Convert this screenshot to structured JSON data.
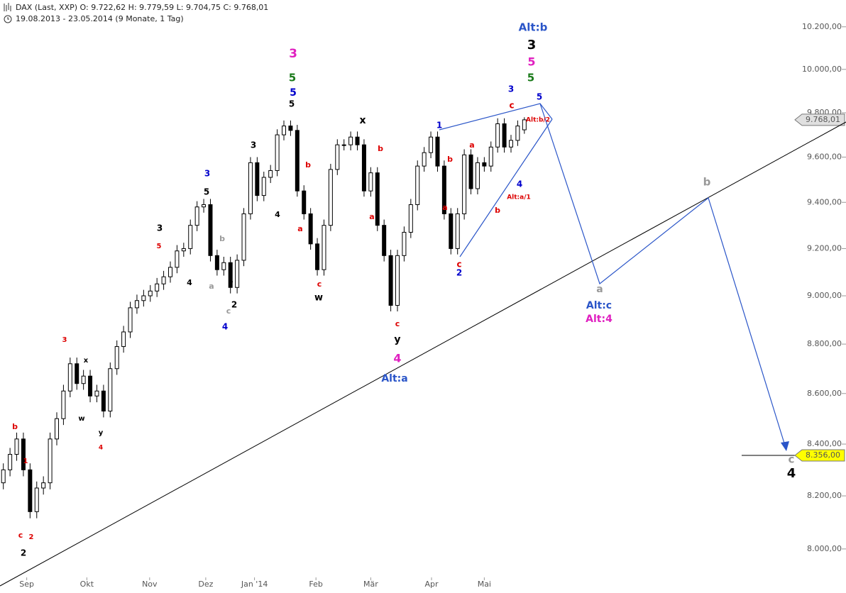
{
  "chart_data": {
    "type": "candlestick",
    "title": "DAX (Last, XXP)   O: 9.722,62   H: 9.779,59   L: 9.704,75   C: 9.768,01",
    "subtitle": "19.08.2013 - 23.05.2014 (9 Monate, 1 Tag)",
    "log_scale": true,
    "xlim": [
      -0.5,
      118.5
    ],
    "ylim": [
      7900,
      10328
    ],
    "xticks": [
      {
        "value": 3.5,
        "label": "Sep"
      },
      {
        "value": 12.5,
        "label": "Okt"
      },
      {
        "value": 21.9,
        "label": "Nov"
      },
      {
        "value": 30.3,
        "label": "Dez"
      },
      {
        "value": 37.6,
        "label": "Jan '14"
      },
      {
        "value": 46.8,
        "label": "Feb"
      },
      {
        "value": 55,
        "label": "Mär"
      },
      {
        "value": 64.1,
        "label": "Apr"
      },
      {
        "value": 72,
        "label": "Mai"
      }
    ],
    "yticks": [
      {
        "value": 8000,
        "label": "8.000,00"
      },
      {
        "value": 8200,
        "label": "8.200,00"
      },
      {
        "value": 8400,
        "label": "8.400,00"
      },
      {
        "value": 8600,
        "label": "8.600,00"
      },
      {
        "value": 8800,
        "label": "8.800,00"
      },
      {
        "value": 9000,
        "label": "9.000,00"
      },
      {
        "value": 9200,
        "label": "9.200,00"
      },
      {
        "value": 9400,
        "label": "9.400,00"
      },
      {
        "value": 9600,
        "label": "9.600,00"
      },
      {
        "value": 9800,
        "label": "9.800,00"
      },
      {
        "value": 10000,
        "label": "10.000,00"
      },
      {
        "value": 10200,
        "label": "10.200,00"
      }
    ],
    "open": [
      8250,
      8300,
      8360,
      8420,
      8300,
      8140,
      8230,
      8250,
      8420,
      8500,
      8610,
      8720,
      8640,
      8670,
      8590,
      8610,
      8530,
      8700,
      8790,
      8850,
      8950,
      8980,
      9000,
      9020,
      9050,
      9080,
      9120,
      9190,
      9200,
      9300,
      9380,
      9390,
      9170,
      9110,
      9140,
      9035,
      9150,
      9350,
      9575,
      9430,
      9510,
      9540,
      9700,
      9740,
      9720,
      9450,
      9350,
      9220,
      9110,
      9300,
      9545,
      9655,
      9655,
      9690,
      9655,
      9450,
      9530,
      9300,
      9170,
      8960,
      9170,
      9270,
      9390,
      9560,
      9620,
      9690,
      9560,
      9350,
      9200,
      9350,
      9610,
      9460,
      9575,
      9560,
      9645,
      9750,
      9645,
      9675,
      9722.62
    ],
    "high": [
      8325,
      8385,
      8445,
      8445,
      8325,
      8255,
      8275,
      8445,
      8525,
      8635,
      8745,
      8745,
      8695,
      8695,
      8635,
      8635,
      8725,
      8815,
      8875,
      8975,
      9005,
      9025,
      9045,
      9075,
      9105,
      9145,
      9215,
      9225,
      9325,
      9405,
      9415,
      9415,
      9195,
      9165,
      9165,
      9175,
      9375,
      9600,
      9600,
      9535,
      9565,
      9725,
      9765,
      9765,
      9745,
      9475,
      9375,
      9245,
      9325,
      9570,
      9680,
      9680,
      9715,
      9715,
      9680,
      9555,
      9555,
      9325,
      9195,
      9195,
      9295,
      9415,
      9585,
      9645,
      9715,
      9715,
      9585,
      9375,
      9375,
      9635,
      9635,
      9600,
      9600,
      9670,
      9775,
      9775,
      9700,
      9765,
      9779.59
    ],
    "low": [
      8225,
      8275,
      8335,
      8275,
      8115,
      8115,
      8205,
      8225,
      8395,
      8475,
      8585,
      8615,
      8615,
      8565,
      8565,
      8505,
      8505,
      8675,
      8765,
      8825,
      8925,
      8955,
      8975,
      8995,
      9025,
      9055,
      9095,
      9165,
      9175,
      9275,
      9355,
      9145,
      9085,
      9085,
      9010,
      9010,
      9125,
      9325,
      9405,
      9405,
      9485,
      9515,
      9675,
      9695,
      9425,
      9325,
      9195,
      9085,
      9085,
      9275,
      9520,
      9630,
      9630,
      9630,
      9425,
      9425,
      9275,
      9145,
      8935,
      8935,
      9145,
      9245,
      9365,
      9535,
      9595,
      9535,
      9325,
      9175,
      9175,
      9325,
      9435,
      9435,
      9535,
      9535,
      9620,
      9620,
      9620,
      9650,
      9704.75
    ],
    "close": [
      8300,
      8360,
      8420,
      8300,
      8140,
      8230,
      8250,
      8420,
      8500,
      8610,
      8720,
      8640,
      8670,
      8590,
      8610,
      8530,
      8700,
      8790,
      8850,
      8950,
      8980,
      9000,
      9020,
      9050,
      9080,
      9120,
      9190,
      9200,
      9300,
      9380,
      9390,
      9170,
      9110,
      9140,
      9035,
      9150,
      9350,
      9575,
      9430,
      9510,
      9540,
      9700,
      9740,
      9720,
      9450,
      9350,
      9220,
      9110,
      9300,
      9545,
      9655,
      9655,
      9690,
      9655,
      9450,
      9530,
      9300,
      9170,
      8960,
      9170,
      9270,
      9390,
      9560,
      9620,
      9690,
      9560,
      9350,
      9200,
      9350,
      9610,
      9460,
      9575,
      9560,
      9645,
      9750,
      9645,
      9675,
      9740,
      9768.01
    ],
    "last_price_label": "9.768,01",
    "target": 8356,
    "target_label": "8.356,00",
    "annotations": [
      {
        "text": "Alt:b",
        "color": "#2a55c8"
      },
      {
        "text": "3",
        "color": "#000000"
      },
      {
        "text": "5",
        "color": "#e020c0"
      },
      {
        "text": "5",
        "color": "#1a7a1a"
      },
      {
        "text": "3",
        "color": "#e020c0"
      },
      {
        "text": "5",
        "color": "#1a7a1a"
      },
      {
        "text": "5",
        "color": "#0000cc"
      },
      {
        "text": "5",
        "color": "#000000"
      },
      {
        "text": "3",
        "color": "#0000cc"
      },
      {
        "text": "5",
        "color": "#0000cc"
      },
      {
        "text": "c",
        "color": "#dd0000"
      },
      {
        "text": "Alt:b/2",
        "color": "#dd0000"
      },
      {
        "text": "1",
        "color": "#0000cc"
      },
      {
        "text": "x",
        "color": "#000000"
      },
      {
        "text": "3",
        "color": "#000000"
      },
      {
        "text": "b",
        "color": "#dd0000"
      },
      {
        "text": "a",
        "color": "#dd0000"
      },
      {
        "text": "b",
        "color": "#dd0000"
      },
      {
        "text": "b",
        "color": "#dd0000"
      },
      {
        "text": "3",
        "color": "#0000cc"
      },
      {
        "text": "5",
        "color": "#000000"
      },
      {
        "text": "4",
        "color": "#0000cc"
      },
      {
        "text": "Alt:a/1",
        "color": "#dd0000"
      },
      {
        "text": "a",
        "color": "#dd0000"
      },
      {
        "text": "b",
        "color": "#dd0000"
      },
      {
        "text": "4",
        "color": "#000000"
      },
      {
        "text": "a",
        "color": "#dd0000"
      },
      {
        "text": "a",
        "color": "#dd0000"
      },
      {
        "text": "3",
        "color": "#000000"
      },
      {
        "text": "5",
        "color": "#dd0000"
      },
      {
        "text": "b",
        "color": "#999999"
      },
      {
        "text": "1",
        "color": "#000000"
      },
      {
        "text": "4",
        "color": "#000000"
      },
      {
        "text": "a",
        "color": "#999999"
      },
      {
        "text": "c",
        "color": "#dd0000"
      },
      {
        "text": "2",
        "color": "#000000"
      },
      {
        "text": "c",
        "color": "#999999"
      },
      {
        "text": "w",
        "color": "#000000"
      },
      {
        "text": "c",
        "color": "#dd0000"
      },
      {
        "text": "2",
        "color": "#0000cc"
      },
      {
        "text": "4",
        "color": "#0000cc"
      },
      {
        "text": "c",
        "color": "#dd0000"
      },
      {
        "text": "y",
        "color": "#000000"
      },
      {
        "text": "4",
        "color": "#e020c0"
      },
      {
        "text": "Alt:a",
        "color": "#2a55c8"
      },
      {
        "text": "3",
        "color": "#dd0000"
      },
      {
        "text": "x",
        "color": "#000000"
      },
      {
        "text": "w",
        "color": "#000000"
      },
      {
        "text": "y",
        "color": "#000000"
      },
      {
        "text": "4",
        "color": "#dd0000"
      },
      {
        "text": "b",
        "color": "#dd0000"
      },
      {
        "text": "1",
        "color": "#dd0000"
      },
      {
        "text": "c",
        "color": "#dd0000"
      },
      {
        "text": "2",
        "color": "#dd0000"
      },
      {
        "text": "2",
        "color": "#000000"
      },
      {
        "text": "a",
        "color": "#999999"
      },
      {
        "text": "Alt:c",
        "color": "#2a55c8"
      },
      {
        "text": "Alt:4",
        "color": "#e020c0"
      },
      {
        "text": "b",
        "color": "#999999"
      },
      {
        "text": "c",
        "color": "#999999"
      },
      {
        "text": "4",
        "color": "#000000"
      }
    ]
  }
}
